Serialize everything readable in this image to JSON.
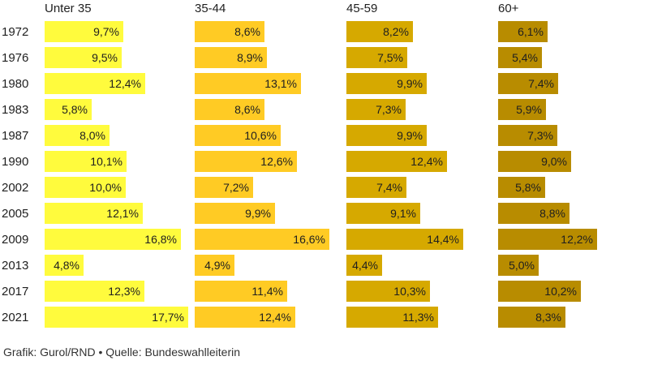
{
  "chart_data": {
    "type": "bar",
    "orientation": "horizontal",
    "layout": "small-multiples",
    "categories": [
      "1972",
      "1976",
      "1980",
      "1983",
      "1987",
      "1990",
      "2002",
      "2005",
      "2009",
      "2013",
      "2017",
      "2021"
    ],
    "series": [
      {
        "name": "Unter 35",
        "color": "#fffb3d",
        "values": [
          9.7,
          9.5,
          12.4,
          5.8,
          8.0,
          10.1,
          10.0,
          12.1,
          16.8,
          4.8,
          12.3,
          17.7
        ],
        "labels": [
          "9,7%",
          "9,5%",
          "12,4%",
          "5,8%",
          "8,0%",
          "10,1%",
          "10,0%",
          "12,1%",
          "16,8%",
          "4,8%",
          "12,3%",
          "17,7%"
        ]
      },
      {
        "name": "35-44",
        "color": "#ffcb24",
        "values": [
          8.6,
          8.9,
          13.1,
          8.6,
          10.6,
          12.6,
          7.2,
          9.9,
          16.6,
          4.9,
          11.4,
          12.4
        ],
        "labels": [
          "8,6%",
          "8,9%",
          "13,1%",
          "8,6%",
          "10,6%",
          "12,6%",
          "7,2%",
          "9,9%",
          "16,6%",
          "4,9%",
          "11,4%",
          "12,4%"
        ]
      },
      {
        "name": "45-59",
        "color": "#d6a900",
        "values": [
          8.2,
          7.5,
          9.9,
          7.3,
          9.9,
          12.4,
          7.4,
          9.1,
          14.4,
          4.4,
          10.3,
          11.3
        ],
        "labels": [
          "8,2%",
          "7,5%",
          "9,9%",
          "7,3%",
          "9,9%",
          "12,4%",
          "7,4%",
          "9,1%",
          "14,4%",
          "4,4%",
          "10,3%",
          "11,3%"
        ]
      },
      {
        "name": "60+",
        "color": "#b88c00",
        "values": [
          6.1,
          5.4,
          7.4,
          5.9,
          7.3,
          9.0,
          5.8,
          8.8,
          12.2,
          5.0,
          10.2,
          8.3
        ],
        "labels": [
          "6,1%",
          "5,4%",
          "7,4%",
          "5,9%",
          "7,3%",
          "9,0%",
          "5,8%",
          "8,8%",
          "12,2%",
          "5,0%",
          "10,2%",
          "8,3%"
        ]
      }
    ],
    "xlim": [
      0,
      17.7
    ],
    "grid": false,
    "legend": "none"
  },
  "footer": "Grafik: Gurol/RND • Quelle: Bundeswahlleiterin"
}
